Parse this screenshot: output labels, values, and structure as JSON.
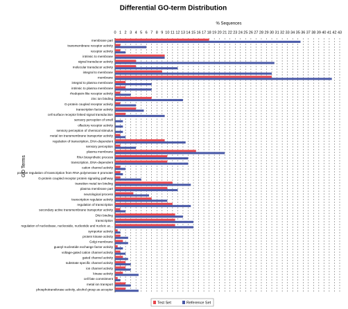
{
  "chart_data": {
    "type": "hbar",
    "title": "Differential GO-term Distribution",
    "x_label": "% Sequences",
    "y_label": "GO Terms",
    "categories": [
      "membrane part",
      "transmembrane receptor activity",
      "receptor activity",
      "intrinsic to membrane",
      "signal transducer activity",
      "molecular transducer activity",
      "integral to membrane",
      "membrane",
      "integral to plasma membrane",
      "intrinsic to plasma membrane",
      "rhodopsin-like receptor activity",
      "zinc ion binding",
      "G-protein coupled receptor activity",
      "transcription factor activity",
      "cell surface receptor linked signal transduction",
      "sensory perception of smell",
      "olfactory receptor activity",
      "sensory perception of chemical stimulus",
      "metal ion transmembrane transporter activity",
      "regulation of transcription, DNA-dependent",
      "sensory perception",
      "plasma membrane",
      "RNA biosynthetic process",
      "transcription, DNA-dependent",
      "cation channel activity",
      "positive regulation of transcription from RNA polymerase II promoter",
      "G-protein coupled receptor protein signaling pathway",
      "transition metal ion binding",
      "plasma membrane part",
      "neurological process",
      "transcription regulator activity",
      "regulation of transcription",
      "secondary active transmembrane transporter activity",
      "DNA binding",
      "transcription",
      "regulation of nucleobase, nucleoside, nucleotide and nucleic ac...",
      "symporter activity",
      "protein kinase activity",
      "Golgi membrane",
      "guanyl-nucleotide exchange factor activity",
      "voltage-gated cation channel activity",
      "gated channel activity",
      "substrate specific channel activity",
      "ion channel activity",
      "kinase activity",
      "cell fate commitment",
      "metal ion transport",
      "phosphotransferase activity, alcohol group as acceptor"
    ],
    "series": [
      {
        "name": "Test Set",
        "color": "#e8484e",
        "values": [
          18,
          1,
          1,
          9.5,
          4,
          4,
          9,
          30,
          2,
          2,
          1,
          7,
          1,
          4,
          2,
          0,
          0,
          0,
          1,
          9.5,
          1,
          15.5,
          10,
          10,
          1,
          1,
          1,
          11,
          10,
          3.5,
          7,
          11,
          1,
          11.5,
          11.5,
          11.5,
          0.5,
          1,
          1.5,
          0.5,
          1,
          1.5,
          2,
          2,
          1.5,
          0.5,
          2,
          2
        ]
      },
      {
        "name": "Reference Set",
        "color": "#4a5aa8",
        "values": [
          35.5,
          6,
          2,
          9.5,
          30.5,
          12,
          30,
          41.5,
          7,
          7,
          3,
          13,
          4,
          5.5,
          9.5,
          1.5,
          1.5,
          1.5,
          2,
          13.5,
          4,
          21,
          14,
          14,
          2,
          1.5,
          5,
          14.5,
          12,
          6.5,
          10,
          14.5,
          2,
          13,
          15,
          15,
          1,
          2.5,
          2.5,
          1.5,
          2,
          2.5,
          3,
          3,
          4.5,
          1,
          3,
          4.5
        ]
      }
    ],
    "xlim": [
      0,
      43
    ],
    "xticks": [
      0,
      1,
      2,
      3,
      4,
      5,
      6,
      7,
      8,
      9,
      10,
      11,
      12,
      13,
      14,
      15,
      16,
      17,
      18,
      19,
      20,
      21,
      22,
      23,
      24,
      25,
      26,
      27,
      28,
      29,
      30,
      31,
      32,
      33,
      34,
      35,
      36,
      37,
      38,
      39,
      40,
      41,
      42,
      43
    ],
    "grid": true
  }
}
